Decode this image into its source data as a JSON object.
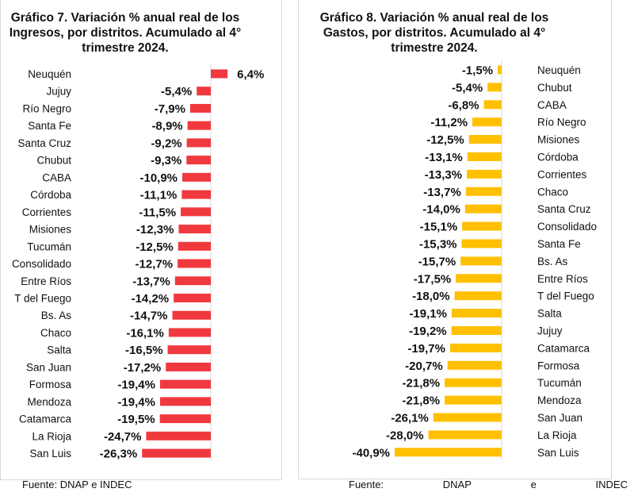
{
  "chart_data": [
    {
      "type": "bar",
      "orientation": "horizontal",
      "title": "Gráfico 7. Variación % anual real de los Ingresos, por distritos. Acumulado al 4° trimestre 2024.",
      "categories": [
        "Neuquén",
        "Jujuy",
        "Río Negro",
        "Santa Fe",
        "Santa Cruz",
        "Chubut",
        "CABA",
        "Córdoba",
        "Corrientes",
        "Misiones",
        "Tucumán",
        "Consolidado",
        "Entre Ríos",
        "T del Fuego",
        "Bs. As",
        "Chaco",
        "Salta",
        "San Juan",
        "Formosa",
        "Mendoza",
        "Catamarca",
        "La Rioja",
        "San Luis"
      ],
      "values": [
        6.4,
        -5.4,
        -7.9,
        -8.9,
        -9.2,
        -9.3,
        -10.9,
        -11.1,
        -11.5,
        -12.3,
        -12.5,
        -12.7,
        -13.7,
        -14.2,
        -14.7,
        -16.1,
        -16.5,
        -17.2,
        -19.4,
        -19.4,
        -19.5,
        -24.7,
        -26.3
      ],
      "labels": [
        "6,4%",
        "-5,4%",
        "-7,9%",
        "-8,9%",
        "-9,2%",
        "-9,3%",
        "-10,9%",
        "-11,1%",
        "-11,5%",
        "-12,3%",
        "-12,5%",
        "-12,7%",
        "-13,7%",
        "-14,2%",
        "-14,7%",
        "-16,1%",
        "-16,5%",
        "-17,2%",
        "-19,4%",
        "-19,4%",
        "-19,5%",
        "-24,7%",
        "-26,3%"
      ],
      "color": "#f0393e",
      "source": "Fuente: DNAP e INDEC"
    },
    {
      "type": "bar",
      "orientation": "horizontal",
      "title": "Gráfico 8. Variación % anual real de los Gastos, por distritos. Acumulado al 4° trimestre 2024.",
      "categories": [
        "Neuquén",
        "Chubut",
        "CABA",
        "Río Negro",
        "Misiones",
        "Córdoba",
        "Corrientes",
        "Chaco",
        "Santa Cruz",
        "Consolidado",
        "Santa Fe",
        "Bs. As",
        "Entre Ríos",
        "T del Fuego",
        "Salta",
        "Jujuy",
        "Catamarca",
        "Formosa",
        "Tucumán",
        "Mendoza",
        "San Juan",
        "La Rioja",
        "San Luis"
      ],
      "values": [
        -1.5,
        -5.4,
        -6.8,
        -11.2,
        -12.5,
        -13.1,
        -13.3,
        -13.7,
        -14.0,
        -15.1,
        -15.3,
        -15.7,
        -17.5,
        -18.0,
        -19.1,
        -19.2,
        -19.7,
        -20.7,
        -21.8,
        -21.8,
        -26.1,
        -28.0,
        -40.9
      ],
      "labels": [
        "-1,5%",
        "-5,4%",
        "-6,8%",
        "-11,2%",
        "-12,5%",
        "-13,1%",
        "-13,3%",
        "-13,7%",
        "-14,0%",
        "-15,1%",
        "-15,3%",
        "-15,7%",
        "-17,5%",
        "-18,0%",
        "-19,1%",
        "-19,2%",
        "-19,7%",
        "-20,7%",
        "-21,8%",
        "-21,8%",
        "-26,1%",
        "-28,0%",
        "-40,9%"
      ],
      "color": "#ffc000",
      "source_words": [
        "Fuente:",
        "DNAP",
        "e",
        "INDEC"
      ]
    }
  ]
}
